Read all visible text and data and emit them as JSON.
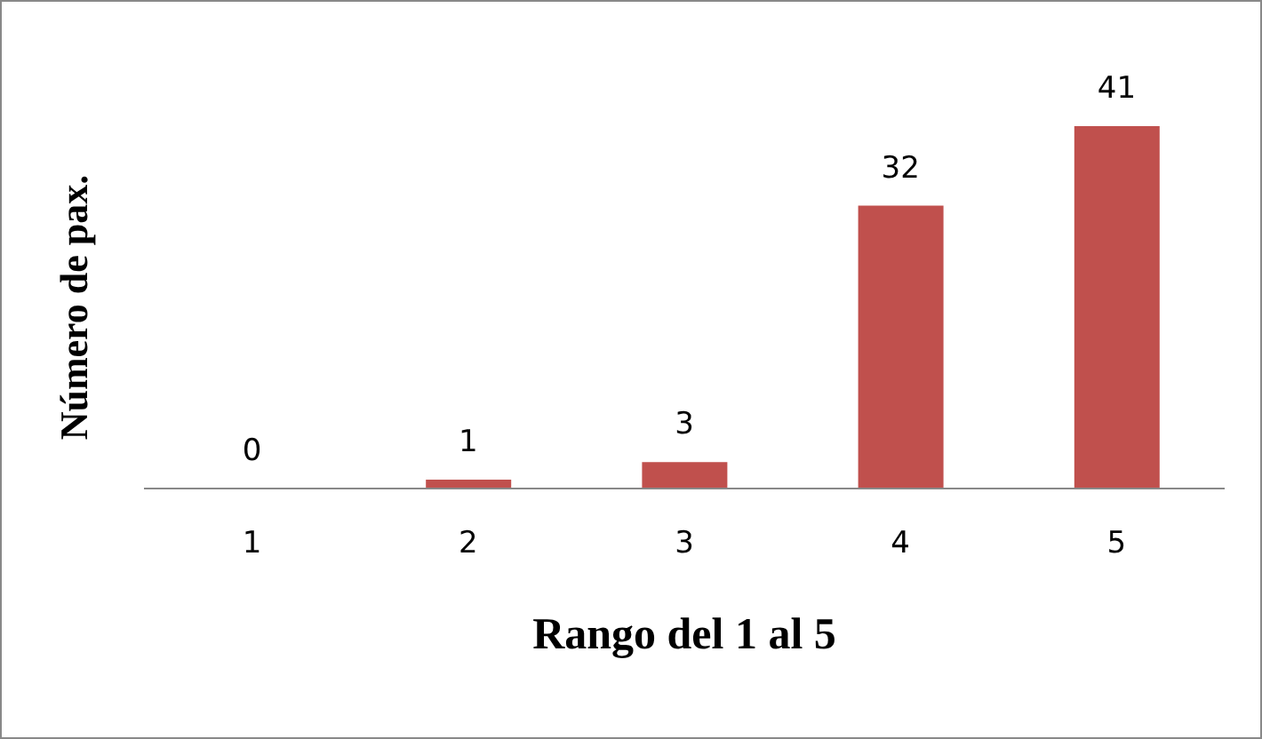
{
  "chart_data": {
    "type": "bar",
    "xlabel": "Rango del 1 al 5",
    "ylabel": "Número de pax.",
    "categories": [
      "1",
      "2",
      "3",
      "4",
      "5"
    ],
    "values": [
      0,
      1,
      3,
      32,
      41
    ],
    "color": "#c0504d",
    "tick_labels": "x",
    "data_labels": true,
    "grid": false,
    "legend": false
  }
}
